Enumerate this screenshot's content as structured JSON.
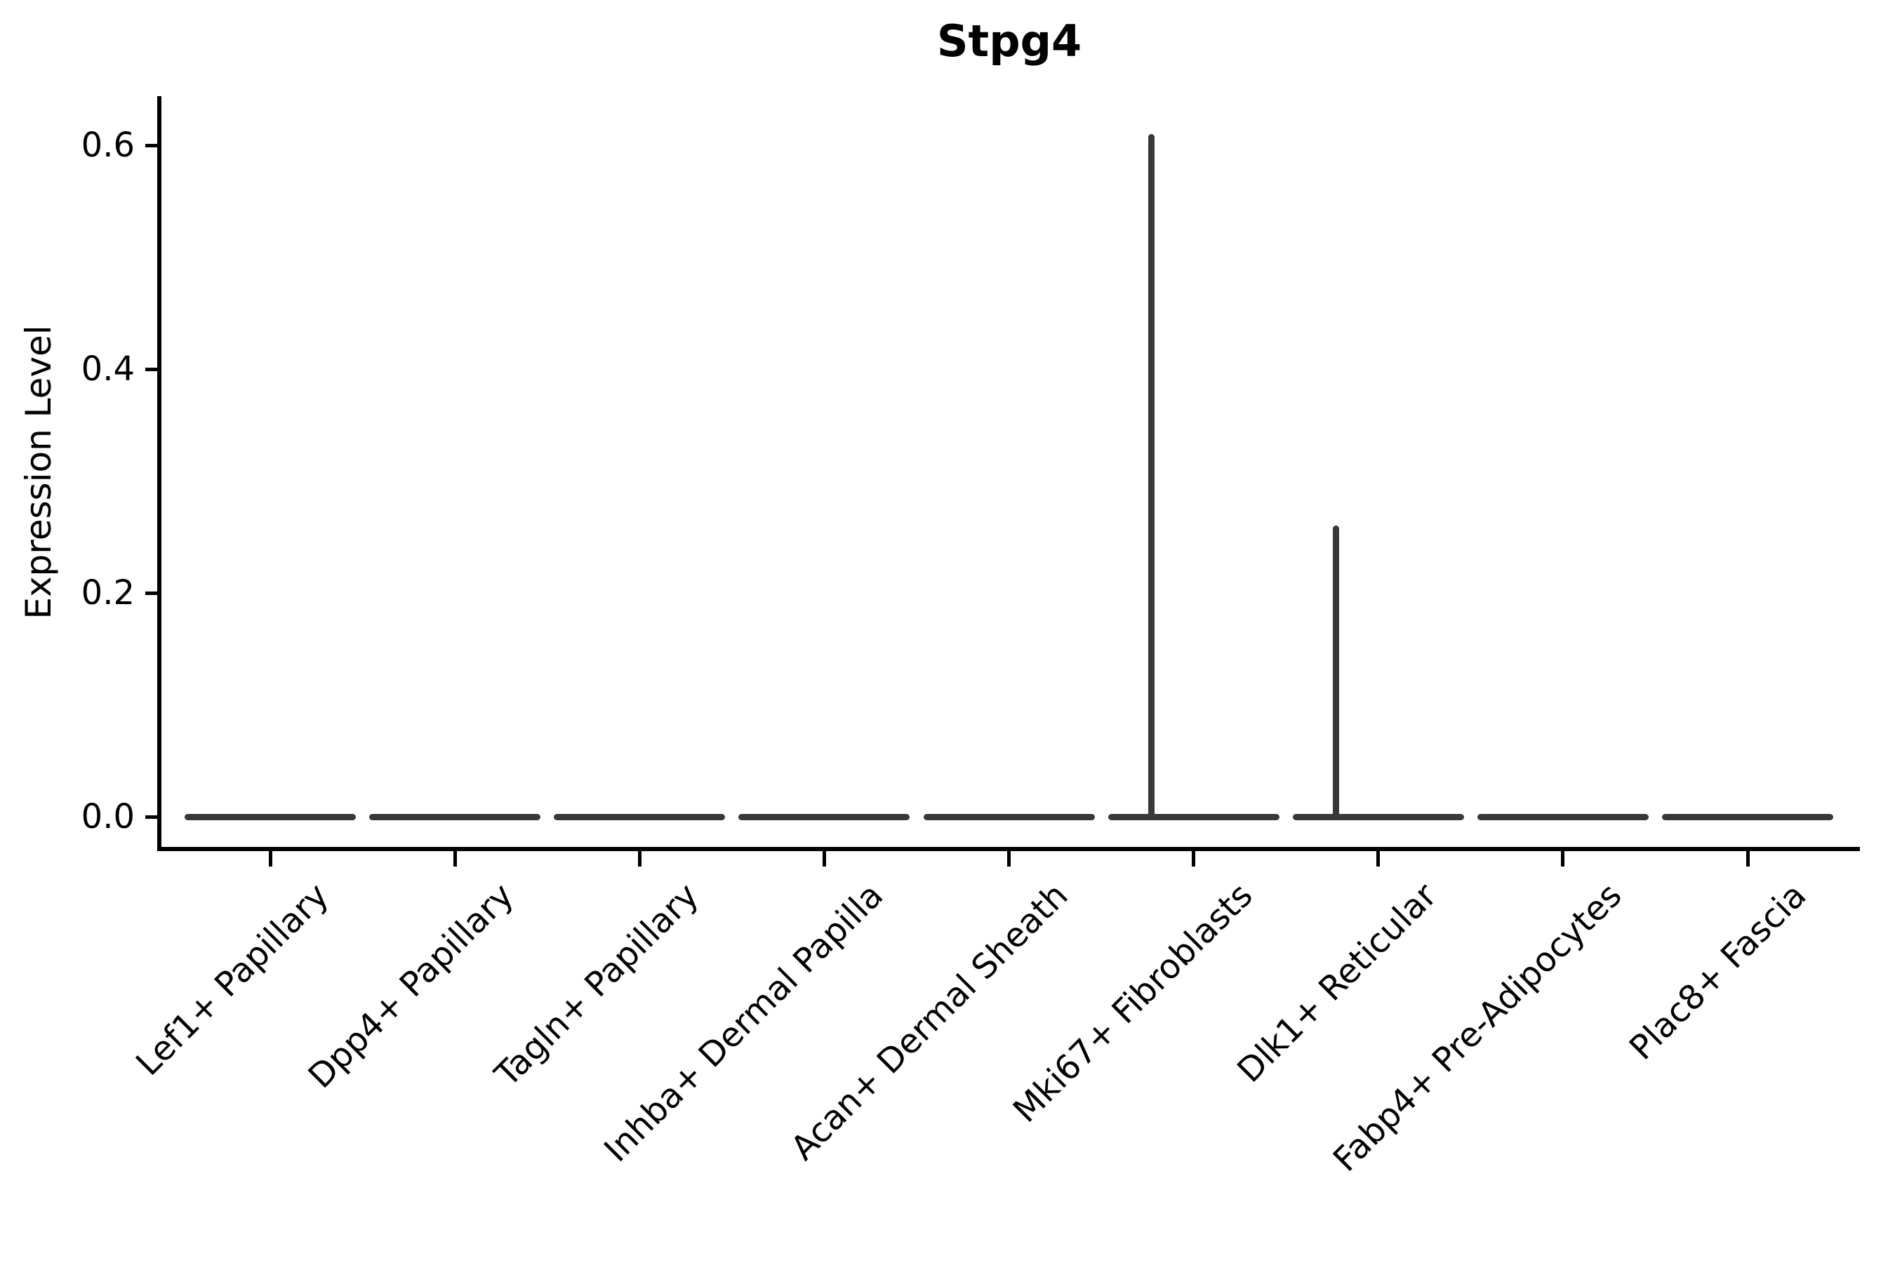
{
  "figure": {
    "title": "Stpg4",
    "y_axis": {
      "label": "Expression Level",
      "tick_labels": [
        "0.0",
        "0.2",
        "0.4",
        "0.6"
      ],
      "tick_values": [
        0.0,
        0.2,
        0.4,
        0.6
      ]
    },
    "x_axis": {
      "categories": [
        "Lef1+ Papillary",
        "Dpp4+ Papillary",
        "Tagln+ Papillary",
        "Inhba+ Dermal Papilla",
        "Acan+ Dermal Sheath",
        "Mki67+ Fibroblasts",
        "Dlk1+ Reticular",
        "Fabp4+ Pre-Adipocytes",
        "Plac8+ Fascia"
      ]
    }
  },
  "chart_data": {
    "type": "violin",
    "title": "Stpg4",
    "xlabel": "",
    "ylabel": "Expression Level",
    "ylim": [
      -0.03,
      0.645
    ],
    "yticks": [
      0.0,
      0.2,
      0.4,
      0.6
    ],
    "grid": false,
    "legend": "none",
    "categories": [
      "Lef1+ Papillary",
      "Dpp4+ Papillary",
      "Tagln+ Papillary",
      "Inhba+ Dermal Papilla",
      "Acan+ Dermal Sheath",
      "Mki67+ Fibroblasts",
      "Dlk1+ Reticular",
      "Fabp4+ Pre-Adipocytes",
      "Plac8+ Fascia"
    ],
    "series": [
      {
        "name": "Lef1+ Papillary",
        "baseline": 0.0,
        "max_expression": 0.0
      },
      {
        "name": "Dpp4+ Papillary",
        "baseline": 0.0,
        "max_expression": 0.0
      },
      {
        "name": "Tagln+ Papillary",
        "baseline": 0.0,
        "max_expression": 0.0
      },
      {
        "name": "Inhba+ Dermal Papilla",
        "baseline": 0.0,
        "max_expression": 0.0
      },
      {
        "name": "Acan+ Dermal Sheath",
        "baseline": 0.0,
        "max_expression": 0.0
      },
      {
        "name": "Mki67+ Fibroblasts",
        "baseline": 0.0,
        "max_expression": 0.61
      },
      {
        "name": "Dlk1+ Reticular",
        "baseline": 0.0,
        "max_expression": 0.26
      },
      {
        "name": "Fabp4+ Pre-Adipocytes",
        "baseline": 0.0,
        "max_expression": 0.0
      },
      {
        "name": "Plac8+ Fascia",
        "baseline": 0.0,
        "max_expression": 0.0
      }
    ],
    "description": "Violin plot of Stpg4 expression per fibroblast cluster; all violins are flat at 0 except thin spikes for Mki67+ Fibroblasts (up to ~0.61) and Dlk1+ Reticular (up to ~0.26)."
  },
  "colors": {
    "background": "#ffffff",
    "axis": "#000000",
    "text": "#000000",
    "violin": "#383838"
  }
}
